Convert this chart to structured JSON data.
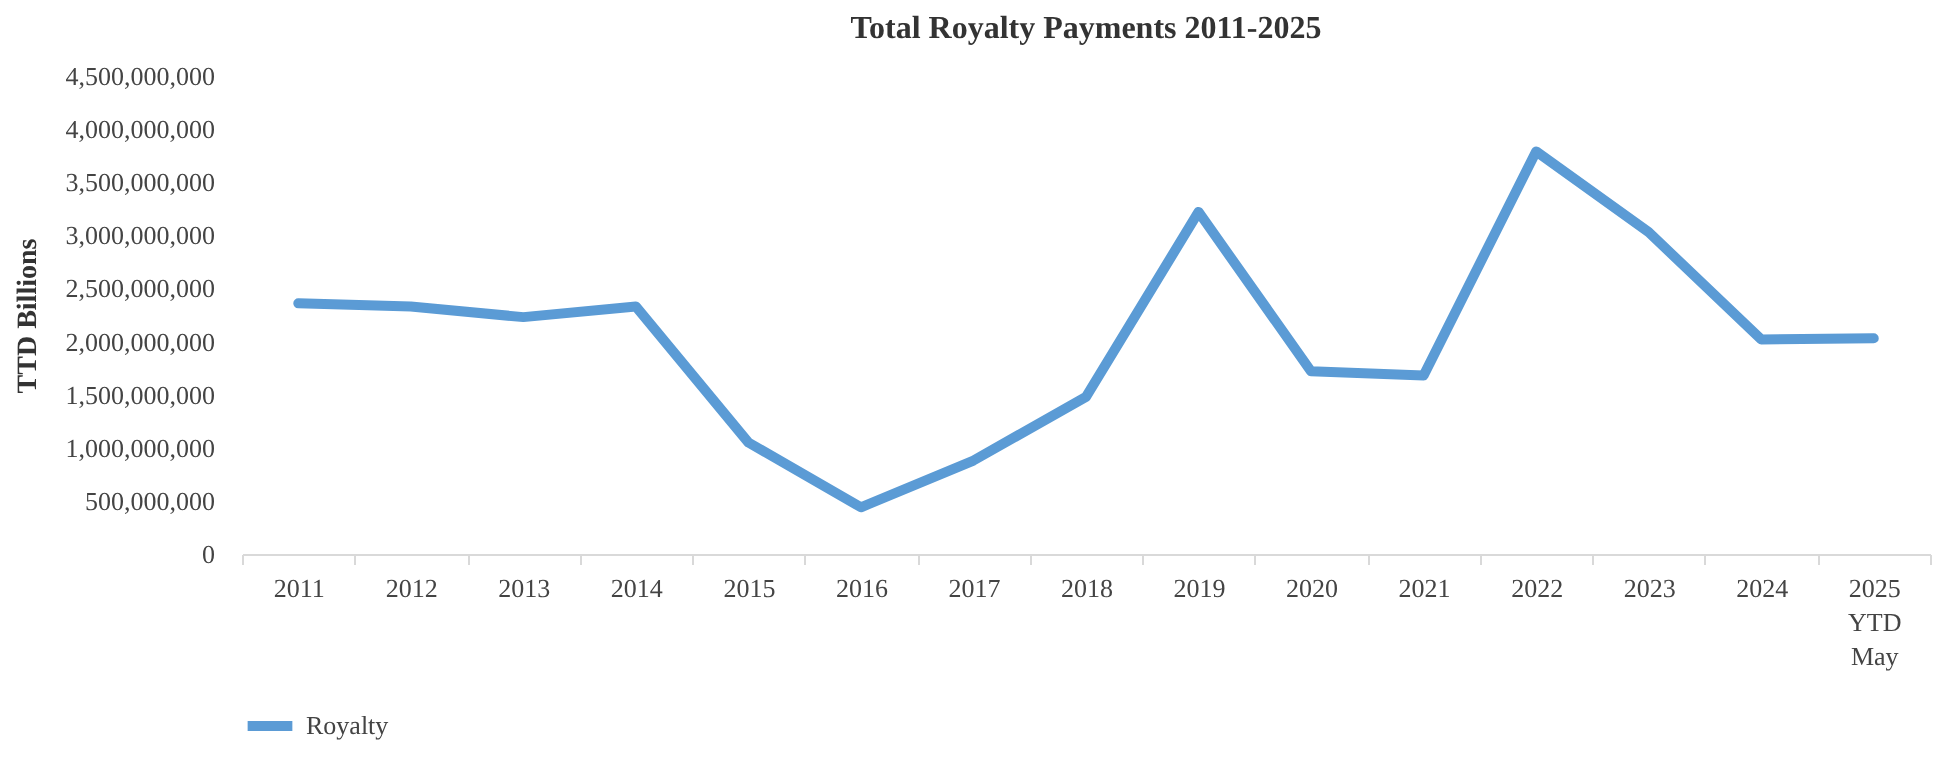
{
  "chart_data": {
    "type": "line",
    "title": "Total Royalty Payments 2011-2025",
    "ylabel": "TTD Billions",
    "categories": [
      "2011",
      "2012",
      "2013",
      "2014",
      "2015",
      "2016",
      "2017",
      "2018",
      "2019",
      "2020",
      "2021",
      "2022",
      "2023",
      "2024",
      "2025 YTD May"
    ],
    "series": [
      {
        "name": "Royalty",
        "color": "#5b9bd5",
        "values": [
          2360000000,
          2330000000,
          2230000000,
          2330000000,
          1050000000,
          440000000,
          880000000,
          1480000000,
          3220000000,
          1720000000,
          1680000000,
          3790000000,
          3030000000,
          2020000000,
          2030000000
        ]
      }
    ],
    "ylim": [
      0,
      4500000000
    ],
    "yticks": [
      0,
      {
        "value": 500000000,
        "label": "500,000,000"
      },
      {
        "value": 1000000000,
        "label": "1,000,000,000"
      },
      {
        "value": 1500000000,
        "label": "1,500,000,000"
      },
      {
        "value": 2000000000,
        "label": "2,000,000,000"
      },
      {
        "value": 2500000000,
        "label": "2,500,000,000"
      },
      {
        "value": 3000000000,
        "label": "3,000,000,000"
      },
      {
        "value": 3500000000,
        "label": "3,500,000,000"
      },
      {
        "value": 4000000000,
        "label": "4,000,000,000"
      },
      {
        "value": 4500000000,
        "label": "4,500,000,000"
      }
    ],
    "grid": false,
    "legend": "bottom",
    "marker": "none",
    "line_style": "solid"
  }
}
